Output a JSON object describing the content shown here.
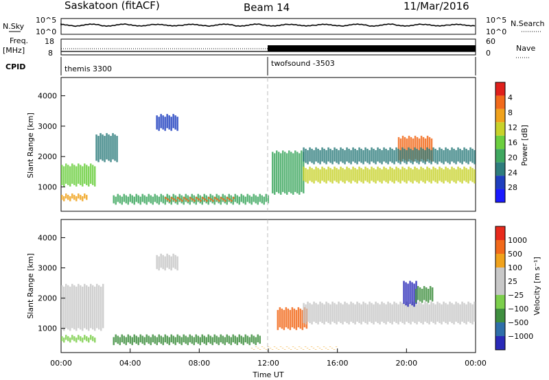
{
  "header": {
    "station": "Saskatoon (fitACF)",
    "beam": "Beam 14",
    "date": "11/Mar/2016"
  },
  "top_panels": {
    "nsky_label": "N.Sky",
    "nsearch_label": "N.Search",
    "noise_ticks_left": [
      "10^5",
      "10^0"
    ],
    "noise_ticks_right": [
      "10^5",
      "10^0"
    ],
    "freq_label": "Freq.",
    "freq_unit": "[MHz]",
    "freq_ticks": [
      "18",
      "8"
    ],
    "nave_label": "Nave",
    "nave_ticks": [
      "60",
      "0"
    ],
    "cpid_label": "CPID",
    "cpid_modes": [
      {
        "name": "themis 3300",
        "start_hour": 0
      },
      {
        "name": "twofsound -3503",
        "start_hour": 12
      }
    ]
  },
  "colors": {
    "power_scale": [
      "#1a1aff",
      "#1f3fbf",
      "#2e7d7d",
      "#3fa860",
      "#6ccf3f",
      "#c8d22a",
      "#f0a21c",
      "#f26a1b",
      "#e0201c"
    ],
    "velocity_scale": [
      "#2a2ab8",
      "#2f6faa",
      "#3f8f3f",
      "#7ccf4c",
      "#c8c8c8",
      "#c8c8c8",
      "#f0a21c",
      "#f26a1b",
      "#e82a1c"
    ]
  },
  "chart_data": [
    {
      "type": "heatmap",
      "panel": "power",
      "ylabel": "Slant Range [km]",
      "xlabel": "Time UT",
      "xlim_hours": [
        0,
        24
      ],
      "ylim": [
        200,
        4600
      ],
      "x_ticks": [
        "00:00",
        "04:00",
        "08:00",
        "12:00",
        "16:00",
        "20:00",
        "00:00"
      ],
      "y_ticks": [
        1000,
        2000,
        3000,
        4000
      ],
      "colorbar_label": "Power [dB]",
      "colorbar_ticks": [
        "4",
        "8",
        "12",
        "16",
        "20",
        "24",
        "28"
      ],
      "bands": [
        {
          "t0": 0.0,
          "t1": 2.0,
          "r0": 1000,
          "r1": 1800,
          "level": 4
        },
        {
          "t0": 0.0,
          "t1": 1.5,
          "r0": 500,
          "r1": 800,
          "level": 6
        },
        {
          "t0": 2.0,
          "t1": 3.2,
          "r0": 1800,
          "r1": 2800,
          "level": 2
        },
        {
          "t0": 3.0,
          "t1": 12.0,
          "r0": 400,
          "r1": 800,
          "level": 3
        },
        {
          "t0": 6.0,
          "t1": 10.0,
          "r0": 500,
          "r1": 700,
          "level": 7
        },
        {
          "t0": 5.5,
          "t1": 6.8,
          "r0": 2800,
          "r1": 3400,
          "level": 1
        },
        {
          "t0": 12.2,
          "t1": 14.0,
          "r0": 700,
          "r1": 2200,
          "level": 3
        },
        {
          "t0": 14.0,
          "t1": 24.0,
          "r0": 1100,
          "r1": 1700,
          "level": 5
        },
        {
          "t0": 19.5,
          "t1": 21.5,
          "r0": 1800,
          "r1": 2700,
          "level": 7
        },
        {
          "t0": 14.0,
          "t1": 24.0,
          "r0": 1700,
          "r1": 2300,
          "level": 2
        }
      ]
    },
    {
      "type": "heatmap",
      "panel": "velocity",
      "ylabel": "Slant Range [km]",
      "xlabel": "Time UT",
      "xlim_hours": [
        0,
        24
      ],
      "ylim": [
        200,
        4600
      ],
      "x_ticks": [
        "00:00",
        "04:00",
        "08:00",
        "12:00",
        "16:00",
        "20:00",
        "00:00"
      ],
      "y_ticks": [
        1000,
        2000,
        3000,
        4000
      ],
      "colorbar_label": "Velocity [m s⁻¹]",
      "colorbar_ticks": [
        "1000",
        "500",
        "100",
        "25",
        "−25",
        "−100",
        "−500",
        "−1000"
      ],
      "bands": [
        {
          "t0": 0.0,
          "t1": 2.5,
          "r0": 900,
          "r1": 2500,
          "level": 4
        },
        {
          "t0": 0.0,
          "t1": 2.0,
          "r0": 500,
          "r1": 800,
          "level": 3
        },
        {
          "t0": 3.0,
          "t1": 11.5,
          "r0": 400,
          "r1": 800,
          "level": 2
        },
        {
          "t0": 5.5,
          "t1": 6.8,
          "r0": 2900,
          "r1": 3500,
          "level": 4
        },
        {
          "t0": 12.5,
          "t1": 14.2,
          "r0": 900,
          "r1": 1700,
          "level": 7
        },
        {
          "t0": 14.0,
          "t1": 24.0,
          "r0": 1100,
          "r1": 1900,
          "level": 4
        },
        {
          "t0": 19.8,
          "t1": 20.6,
          "r0": 1700,
          "r1": 2600,
          "level": 0
        },
        {
          "t0": 20.5,
          "t1": 21.5,
          "r0": 1800,
          "r1": 2400,
          "level": 2
        },
        {
          "t0": 11.0,
          "t1": 16.0,
          "r0": 250,
          "r1": 400,
          "level": 6
        }
      ]
    }
  ]
}
